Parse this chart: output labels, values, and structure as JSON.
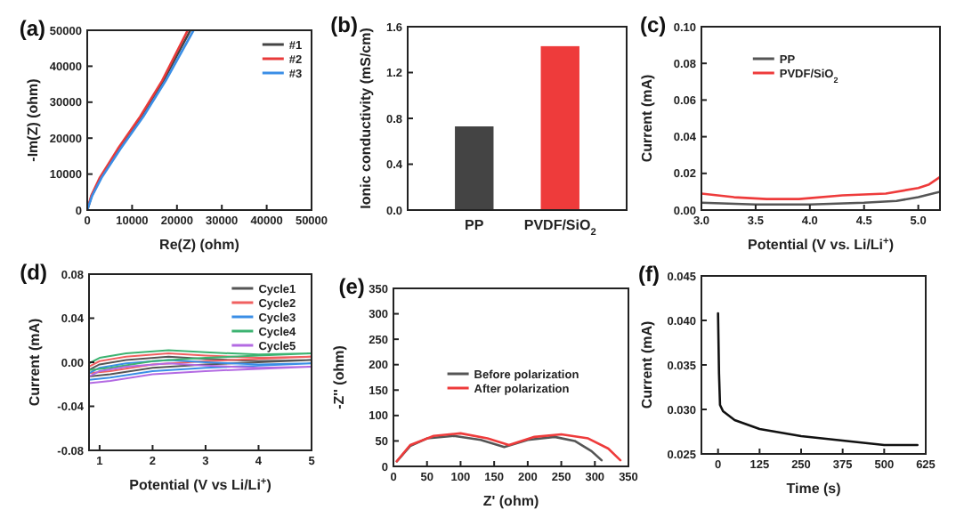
{
  "chart_data": [
    {
      "type": "line",
      "title": "(a)",
      "xlabel": "Re(Z) (ohm)",
      "ylabel": "-Im(Z) (ohm)",
      "xlim": [
        0,
        50000
      ],
      "ylim": [
        0,
        50000
      ],
      "xticks": [
        0,
        10000,
        20000,
        30000,
        40000,
        50000
      ],
      "yticks": [
        0,
        10000,
        20000,
        30000,
        40000,
        50000
      ],
      "legend": "top right",
      "series": [
        {
          "name": "#1",
          "color": "#444444",
          "x": [
            0,
            1000,
            3000,
            7000,
            12000,
            17000,
            23000
          ],
          "values": [
            0,
            4000,
            9000,
            17000,
            26000,
            36000,
            50000
          ]
        },
        {
          "name": "#2",
          "color": "#e83a3a",
          "x": [
            0,
            900,
            2800,
            6800,
            11800,
            16700,
            22400
          ],
          "values": [
            0,
            4000,
            9000,
            17000,
            26000,
            36000,
            50000
          ]
        },
        {
          "name": "#3",
          "color": "#3a8ee6",
          "x": [
            0,
            1100,
            3200,
            7400,
            12500,
            17500,
            23700
          ],
          "values": [
            0,
            4000,
            9000,
            17000,
            26000,
            36000,
            50000
          ]
        }
      ]
    },
    {
      "type": "bar",
      "title": "(b)",
      "ylabel": "Ionic conductivity (mS/cm)",
      "categories": [
        "PP",
        "PVDF/SiO$_{2}$"
      ],
      "values": [
        0.73,
        1.43
      ],
      "colors": [
        "#444444",
        "#ee3b3b"
      ],
      "ylim": [
        0,
        1.6
      ],
      "yticks": [
        {
          "value": 0,
          "label": "0.0"
        },
        {
          "value": 0.4,
          "label": "0.4"
        },
        {
          "value": 0.8,
          "label": "0.8"
        },
        {
          "value": 1.2,
          "label": "1.2"
        },
        {
          "value": 1.6,
          "label": "1.6"
        }
      ]
    },
    {
      "type": "line",
      "title": "(c)",
      "xlabel": "Potential (V vs. Li/Li$^{+}$)",
      "ylabel": "Current (mA)",
      "xlim": [
        3.0,
        5.2
      ],
      "ylim": [
        0,
        0.1
      ],
      "xticks": [
        {
          "value": 3,
          "label": "3.0"
        },
        3.5,
        {
          "value": 4,
          "label": "4.0"
        },
        4.5,
        {
          "value": 5,
          "label": "5.0"
        }
      ],
      "yticks": [
        {
          "value": 0,
          "label": "0.00"
        },
        {
          "value": 0.02,
          "label": "0.02"
        },
        {
          "value": 0.04,
          "label": "0.04"
        },
        {
          "value": 0.06,
          "label": "0.06"
        },
        {
          "value": 0.08,
          "label": "0.08"
        },
        {
          "value": 0.1,
          "label": "0.10"
        }
      ],
      "legend": "top",
      "series": [
        {
          "name": "PP",
          "color": "#555555",
          "x": [
            3.0,
            3.5,
            4.0,
            4.5,
            4.8,
            5.0,
            5.2
          ],
          "values": [
            0.004,
            0.003,
            0.003,
            0.004,
            0.005,
            0.007,
            0.01
          ]
        },
        {
          "name": "PVDF/SiO$_{2}$",
          "color": "#ee3b3b",
          "x": [
            3.0,
            3.3,
            3.6,
            3.9,
            4.3,
            4.7,
            5.0,
            5.1,
            5.2
          ],
          "values": [
            0.009,
            0.007,
            0.006,
            0.006,
            0.008,
            0.009,
            0.012,
            0.014,
            0.018
          ]
        }
      ]
    },
    {
      "type": "line",
      "title": "(d)",
      "xlabel": "Potential (V vs Li/Li$^{+}$)",
      "ylabel": "Current (mA)",
      "xlim": [
        0.8,
        5
      ],
      "ylim": [
        -0.08,
        0.08
      ],
      "xticks": [
        1,
        2,
        3,
        4,
        5
      ],
      "yticks": [
        {
          "value": -0.08,
          "label": "-0.08"
        },
        {
          "value": -0.04,
          "label": "-0.04"
        },
        {
          "value": 0,
          "label": "0.00"
        },
        {
          "value": 0.04,
          "label": "0.04"
        },
        {
          "value": 0.08,
          "label": "0.08"
        }
      ],
      "legend": "top right",
      "series": [
        {
          "name": "Cycle1",
          "color": "#555555",
          "x": [
            0.8,
            1.2,
            2,
            3,
            4,
            5,
            4,
            3.5,
            3,
            2.3,
            1.5,
            1,
            0.8
          ],
          "values": [
            -0.013,
            -0.011,
            -0.005,
            -0.002,
            0,
            0.002,
            0.001,
            0.002,
            0.003,
            0.005,
            0.002,
            -0.002,
            -0.007
          ]
        },
        {
          "name": "Cycle2",
          "color": "#f06060",
          "x": [
            0.8,
            1.2,
            2,
            3,
            4,
            5,
            4,
            3.5,
            3,
            2.3,
            1.5,
            1,
            0.8
          ],
          "values": [
            -0.01,
            -0.008,
            -0.002,
            0.001,
            0.003,
            0.005,
            0.004,
            0.005,
            0.006,
            0.008,
            0.005,
            0.001,
            -0.004
          ]
        },
        {
          "name": "Cycle3",
          "color": "#3a8ee6",
          "x": [
            0.8,
            1.2,
            2,
            3,
            4,
            5,
            4,
            3.5,
            3,
            2.3,
            1.5,
            1,
            0.8
          ],
          "values": [
            -0.016,
            -0.014,
            -0.008,
            -0.005,
            -0.003,
            -0.001,
            -0.002,
            -0.001,
            0,
            0.002,
            -0.001,
            -0.005,
            -0.01
          ]
        },
        {
          "name": "Cycle4",
          "color": "#3cb371",
          "x": [
            0.8,
            1.2,
            2,
            3,
            4,
            5,
            4,
            3.5,
            3,
            2.3,
            1.5,
            1,
            0.8
          ],
          "values": [
            -0.007,
            -0.005,
            0.001,
            0.004,
            0.006,
            0.008,
            0.007,
            0.008,
            0.009,
            0.011,
            0.008,
            0.004,
            -0.001
          ]
        },
        {
          "name": "Cycle5",
          "color": "#b36ae2",
          "x": [
            0.8,
            1.2,
            2,
            3,
            4,
            5,
            4,
            3.5,
            3,
            2.3,
            1.5,
            1,
            0.8
          ],
          "values": [
            -0.019,
            -0.017,
            -0.011,
            -0.008,
            -0.006,
            -0.004,
            -0.005,
            -0.004,
            -0.003,
            -0.001,
            -0.004,
            -0.008,
            -0.013
          ]
        }
      ]
    },
    {
      "type": "line",
      "title": "(e)",
      "xlabel": "Z' (ohm)",
      "ylabel": "-Z'' (ohm)",
      "xlim": [
        0,
        350
      ],
      "ylim": [
        0,
        350
      ],
      "xticks": [
        0,
        50,
        100,
        150,
        200,
        250,
        300,
        350
      ],
      "yticks": [
        0,
        50,
        100,
        150,
        200,
        250,
        300,
        350
      ],
      "legend": "right",
      "series": [
        {
          "name": "Before polarization",
          "color": "#555555",
          "x": [
            5,
            25,
            50,
            90,
            130,
            165,
            200,
            240,
            270,
            295,
            310
          ],
          "values": [
            10,
            40,
            55,
            60,
            52,
            38,
            52,
            58,
            50,
            30,
            12
          ]
        },
        {
          "name": "After polarization",
          "color": "#ee3b3b",
          "x": [
            5,
            25,
            60,
            100,
            140,
            172,
            210,
            250,
            290,
            320,
            338
          ],
          "values": [
            10,
            42,
            60,
            65,
            55,
            42,
            58,
            63,
            55,
            35,
            12
          ]
        }
      ]
    },
    {
      "type": "line",
      "title": "(f)",
      "xlabel": "Time (s)",
      "ylabel": "Current (mA)",
      "xlim": [
        -50,
        625
      ],
      "ylim": [
        0.025,
        0.045
      ],
      "xticks": [
        0,
        125,
        250,
        375,
        500,
        625
      ],
      "yticks": [
        0.025,
        {
          "value": 0.03,
          "label": "0.030"
        },
        0.035,
        {
          "value": 0.04,
          "label": "0.040"
        },
        0.045
      ],
      "series": [
        {
          "color": "#111111",
          "x": [
            0,
            3,
            6,
            15,
            50,
            125,
            250,
            375,
            500,
            600
          ],
          "values": [
            0.0408,
            0.034,
            0.0305,
            0.0298,
            0.0288,
            0.0278,
            0.027,
            0.0265,
            0.026,
            0.026
          ]
        }
      ]
    }
  ]
}
